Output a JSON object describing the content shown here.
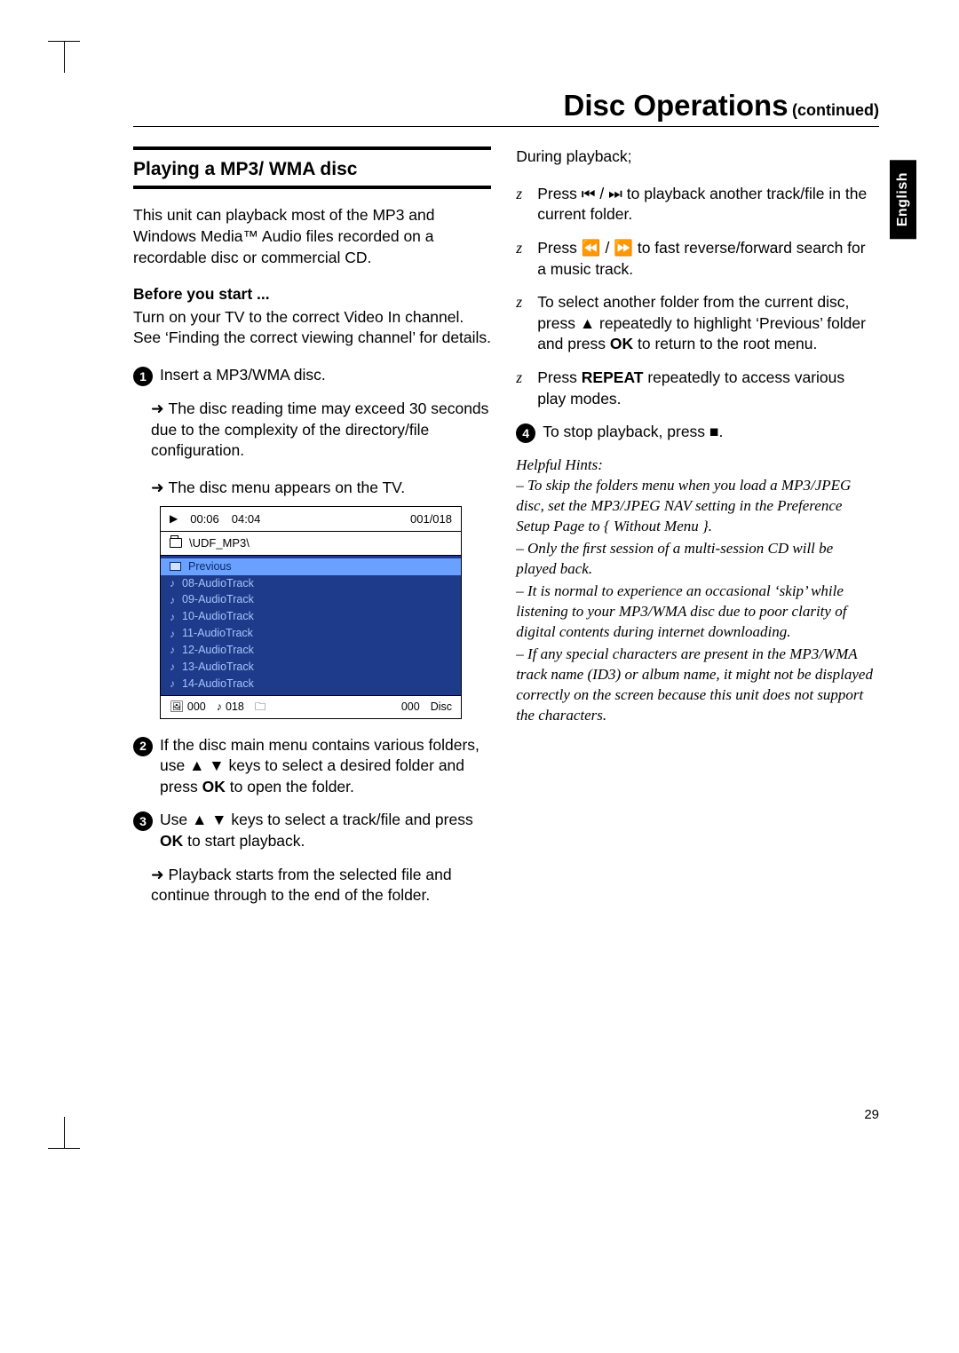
{
  "page": {
    "title": "Disc Operations",
    "title_suffix": "(continued)",
    "language_tab": "English",
    "page_number": "29"
  },
  "section": {
    "heading": "Playing a MP3/ WMA  disc",
    "intro": "This unit can playback most of the MP3 and Windows Media™ Audio ﬁles recorded on a recordable disc or commercial CD.",
    "before_label": "Before you start ...",
    "before_text": "Turn on your TV to the correct Video In channel. See ‘Finding the correct viewing channel’ for details."
  },
  "steps": {
    "s1": {
      "num": "1",
      "text": "Insert a MP3/WMA disc.",
      "sub_a": "The disc reading time may exceed 30 seconds due to the complexity of the directory/ﬁle conﬁguration.",
      "sub_b": "The disc menu appears on the TV."
    },
    "s2": {
      "num": "2",
      "text_a": "If the disc main menu contains various folders, use ",
      "text_keys": "▲ ▼",
      "text_b": " keys to select a desired folder and press ",
      "text_ok": "OK",
      "text_c": " to open the folder."
    },
    "s3": {
      "num": "3",
      "text_a": "Use ",
      "text_keys": "▲ ▼",
      "text_b": " keys to select a track/ﬁle and press ",
      "text_ok": "OK",
      "text_c": " to start playback.",
      "sub": "Playback starts from the selected ﬁle and continue through to the end of the folder."
    },
    "s4": {
      "num": "4",
      "text_a": "To stop playback, press ",
      "text_sym": "■",
      "text_b": "."
    }
  },
  "right": {
    "during": "During playback;",
    "b1_a": "Press ",
    "b1_sym": "⏮ / ⏭",
    "b1_b": " to playback another track/ﬁle in the current folder.",
    "b2_a": "Press ",
    "b2_sym": "⏪ / ⏩",
    "b2_b": " to fast reverse/forward search for a music track.",
    "b3_a": "To select another folder from the current disc, press ",
    "b3_key": "▲",
    "b3_b": " repeatedly to highlight ‘Previous’ folder and press ",
    "b3_ok": "OK",
    "b3_c": " to return to the root menu.",
    "b4_a": "Press ",
    "b4_bold": "REPEAT",
    "b4_b": " repeatedly to access various play modes."
  },
  "hints": {
    "title": "Helpful Hints:",
    "h1": "–  To skip the folders menu when you load a MP3/JPEG disc, set the MP3/JPEG NAV setting in the Preference Setup Page to { Without Menu }.",
    "h2": "–  Only the ﬁrst session of a multi-session CD will be played back.",
    "h3": "–  It is normal to experience an occasional ‘skip’ while listening to your MP3/WMA disc due to poor clarity of digital contents during internet downloading.",
    "h4": "–  If any special characters are present in the MP3/WMA track name (ID3) or album name, it might not be displayed correctly on the screen because this unit does not support the characters."
  },
  "disc_menu": {
    "elapsed": "00:06",
    "total": "04:04",
    "counter": "001/018",
    "path": "\\UDF_MP3\\",
    "rows": [
      {
        "label": "Previous",
        "type": "folder",
        "selected": true
      },
      {
        "label": "08-AudioTrack",
        "type": "music",
        "selected": false
      },
      {
        "label": "09-AudioTrack",
        "type": "music",
        "selected": false
      },
      {
        "label": "10-AudioTrack",
        "type": "music",
        "selected": false
      },
      {
        "label": "11-AudioTrack",
        "type": "music",
        "selected": false
      },
      {
        "label": "12-AudioTrack",
        "type": "music",
        "selected": false
      },
      {
        "label": "13-AudioTrack",
        "type": "music",
        "selected": false
      },
      {
        "label": "14-AudioTrack",
        "type": "music",
        "selected": false
      }
    ],
    "bottom": {
      "a": "000",
      "b": "018",
      "c": "000",
      "d": "Disc"
    },
    "colors": {
      "list_bg": "#1e3a8a",
      "list_fg": "#a7c4ff",
      "sel_bg": "#6aa0ff",
      "sel_fg": "#0b2a66"
    }
  }
}
